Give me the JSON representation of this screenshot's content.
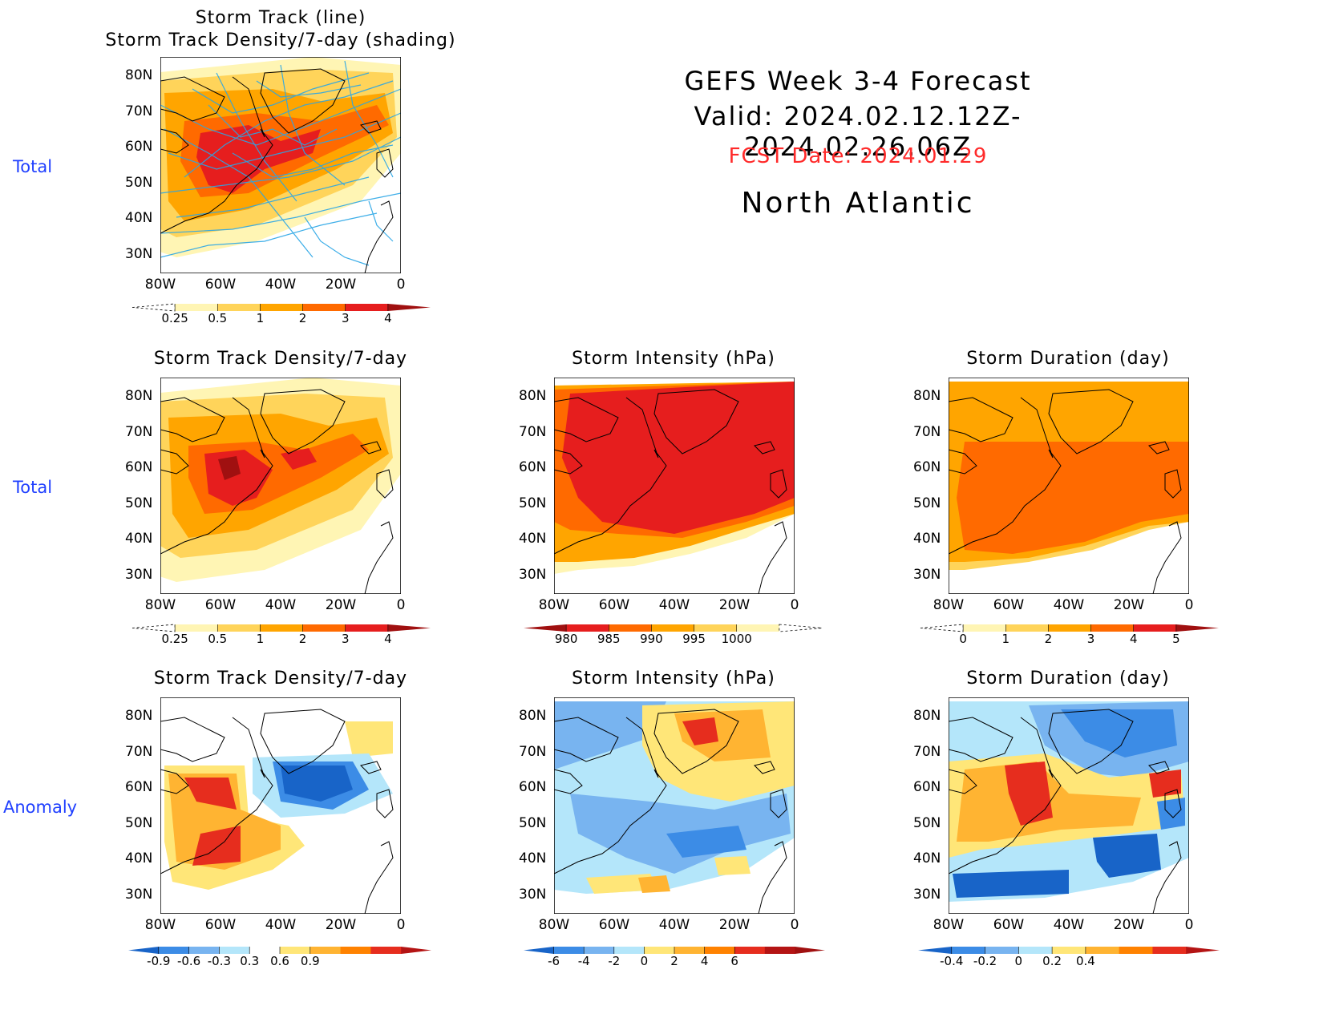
{
  "header": {
    "line1": "GEFS Week 3-4 Forecast",
    "line2": "Valid: 2024.02.12.12Z-2024.02.26.06Z",
    "fcst_date": "FCST Date: 2024.01.29",
    "region": "North Atlantic"
  },
  "row_labels": {
    "row1": "Total",
    "row2": "Total",
    "row3": "Anomaly"
  },
  "axes": {
    "lat_labels": [
      "80N",
      "70N",
      "60N",
      "50N",
      "40N",
      "30N"
    ],
    "lon_labels": [
      "80W",
      "60W",
      "40W",
      "20W",
      "0"
    ]
  },
  "panels": {
    "p1": {
      "title1": "Storm Track (line)",
      "title2": "Storm Track Density/7-day (shading)"
    },
    "p2": {
      "title": "Storm Track Density/7-day"
    },
    "p3": {
      "title": "Storm Intensity (hPa)"
    },
    "p4": {
      "title": "Storm Duration (day)"
    },
    "p5": {
      "title": "Storm Track Density/7-day"
    },
    "p6": {
      "title": "Storm Intensity (hPa)"
    },
    "p7": {
      "title": "Storm Duration (day)"
    }
  },
  "colorbars": {
    "density": {
      "labels": [
        "0.25",
        "0.5",
        "1",
        "2",
        "3",
        "4"
      ],
      "colors": [
        "#fff5b4",
        "#ffd45a",
        "#ffa500",
        "#ff6a00",
        "#e61e1e",
        "#a01010"
      ]
    },
    "intensity": {
      "labels": [
        "980",
        "985",
        "990",
        "995",
        "1000"
      ],
      "colors": [
        "#a01010",
        "#e61e1e",
        "#ff6a00",
        "#ffa500",
        "#ffd45a",
        "#fff5b4"
      ]
    },
    "duration": {
      "labels": [
        "0",
        "1",
        "2",
        "3",
        "4",
        "5"
      ],
      "colors": [
        "#fff5b4",
        "#ffd45a",
        "#ffa500",
        "#ff6a00",
        "#e61e1e",
        "#a01010"
      ]
    },
    "density_anom": {
      "labels": [
        "-0.9",
        "-0.6",
        "-0.3",
        "0.3",
        "0.6",
        "0.9"
      ],
      "colors": [
        "#1864c8",
        "#3c8ce6",
        "#78b4f0",
        "#b4e6fa",
        "#ffffff",
        "#ffe678",
        "#ffb432",
        "#ff8200",
        "#e62d1e",
        "#b41414"
      ]
    },
    "intensity_anom": {
      "labels": [
        "-6",
        "-4",
        "-2",
        "0",
        "2",
        "4",
        "6"
      ],
      "colors": [
        "#1864c8",
        "#3c8ce6",
        "#78b4f0",
        "#b4e6fa",
        "#ffe678",
        "#ffb432",
        "#ff8200",
        "#e62d1e",
        "#b41414"
      ]
    },
    "duration_anom": {
      "labels": [
        "-0.4",
        "-0.2",
        "0",
        "0.2",
        "0.4"
      ],
      "colors": [
        "#1864c8",
        "#3c8ce6",
        "#78b4f0",
        "#b4e6fa",
        "#ffe678",
        "#ffb432",
        "#ff8200",
        "#e62d1e"
      ]
    }
  }
}
